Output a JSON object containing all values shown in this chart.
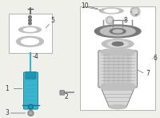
{
  "bg_color": "#f0f0eb",
  "border_color": "#999999",
  "strut_color": "#3ab5d0",
  "strut_dark": "#1a7090",
  "strut_mid": "#2295b0",
  "part_gray": "#b0b0b0",
  "part_dark": "#777777",
  "part_light": "#d8d8d8",
  "part_mid": "#c0c0c0",
  "text_color": "#333333",
  "white": "#ffffff"
}
